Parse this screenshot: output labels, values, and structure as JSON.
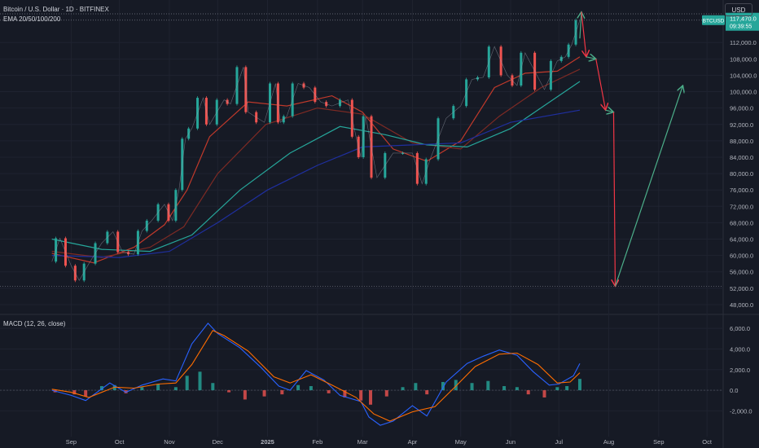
{
  "header": {
    "symbol_title": "Bitcoin / U.S. Dollar · 1D · BITFINEX",
    "ema_label": "EMA 20/50/100/200",
    "currency_button": "USD"
  },
  "price_tag": {
    "symbol": "BTCUSD",
    "price": "117,470.0",
    "countdown": "09:39:55"
  },
  "macd_label": "MACD (12, 26, close)",
  "colors": {
    "background": "#161a25",
    "up": "#26a69a",
    "down": "#ef5350",
    "ema20": "#c0392b",
    "ema50": "#7d2a24",
    "ema100": "#26a69a",
    "ema200": "#1f2f9e",
    "macd": "#2962ff",
    "signal": "#ff6d00",
    "arrow_down": "#f23645",
    "arrow_up": "#4caf8a",
    "grid": "#1f2330",
    "axis_text": "#b2b5be"
  },
  "chart_data": [
    {
      "type": "candlestick",
      "title": "Bitcoin / U.S. Dollar · 1D · BITFINEX",
      "y_axis_ticks": [
        "112,000.0",
        "108,000.0",
        "104,000.0",
        "100,000.0",
        "96,000.0",
        "92,000.0",
        "88,000.0",
        "84,000.0",
        "80,000.0",
        "76,000.0",
        "72,000.0",
        "68,000.0",
        "64,000.0",
        "60,000.0",
        "56,000.0",
        "52,000.0",
        "48,000.0"
      ],
      "ylim": [
        46000,
        120000
      ],
      "x_axis_ticks": [
        "Sep",
        "Oct",
        "Nov",
        "Dec",
        "2025",
        "Feb",
        "Mar",
        "Apr",
        "May",
        "Jun",
        "Jul",
        "Aug",
        "Sep",
        "Oct"
      ],
      "grid": true,
      "close_series": {
        "name": "BTCUSD",
        "points": [
          [
            "2024-08-20",
            58500
          ],
          [
            "2024-08-25",
            64200
          ],
          [
            "2024-09-01",
            57500
          ],
          [
            "2024-09-06",
            53900
          ],
          [
            "2024-09-12",
            58000
          ],
          [
            "2024-09-20",
            63000
          ],
          [
            "2024-09-27",
            65800
          ],
          [
            "2024-10-03",
            60800
          ],
          [
            "2024-10-10",
            60300
          ],
          [
            "2024-10-15",
            66000
          ],
          [
            "2024-10-21",
            68500
          ],
          [
            "2024-10-29",
            72500
          ],
          [
            "2024-11-03",
            68500
          ],
          [
            "2024-11-07",
            76000
          ],
          [
            "2024-11-11",
            88500
          ],
          [
            "2024-11-15",
            91000
          ],
          [
            "2024-11-22",
            98500
          ],
          [
            "2024-11-26",
            92000
          ],
          [
            "2024-12-05",
            98000
          ],
          [
            "2024-12-09",
            97000
          ],
          [
            "2024-12-17",
            106000
          ],
          [
            "2024-12-20",
            95000
          ],
          [
            "2024-12-30",
            92500
          ],
          [
            "2025-01-06",
            102000
          ],
          [
            "2025-01-09",
            92500
          ],
          [
            "2025-01-13",
            94000
          ],
          [
            "2025-01-20",
            102000
          ],
          [
            "2025-01-27",
            101000
          ],
          [
            "2025-02-03",
            97500
          ],
          [
            "2025-02-10",
            96500
          ],
          [
            "2025-02-20",
            98000
          ],
          [
            "2025-02-25",
            89000
          ],
          [
            "2025-02-28",
            84000
          ],
          [
            "2025-03-03",
            94000
          ],
          [
            "2025-03-10",
            79000
          ],
          [
            "2025-03-20",
            85000
          ],
          [
            "2025-04-01",
            85000
          ],
          [
            "2025-04-07",
            77500
          ],
          [
            "2025-04-12",
            83500
          ],
          [
            "2025-04-22",
            93500
          ],
          [
            "2025-05-01",
            96500
          ],
          [
            "2025-05-08",
            103000
          ],
          [
            "2025-05-15",
            103500
          ],
          [
            "2025-05-22",
            111000
          ],
          [
            "2025-05-30",
            104000
          ],
          [
            "2025-06-05",
            101500
          ],
          [
            "2025-06-10",
            109500
          ],
          [
            "2025-06-22",
            100500
          ],
          [
            "2025-06-30",
            107500
          ],
          [
            "2025-07-05",
            108500
          ],
          [
            "2025-07-09",
            111500
          ],
          [
            "2025-07-14",
            117470
          ]
        ]
      },
      "ema_series": [
        {
          "name": "EMA 20",
          "points": [
            [
              "2024-08-20",
              60500
            ],
            [
              "2024-09-15",
              58200
            ],
            [
              "2024-10-10",
              62000
            ],
            [
              "2024-10-29",
              67500
            ],
            [
              "2024-11-12",
              76000
            ],
            [
              "2024-11-26",
              89000
            ],
            [
              "2024-12-20",
              97500
            ],
            [
              "2025-01-13",
              96500
            ],
            [
              "2025-02-10",
              99000
            ],
            [
              "2025-03-01",
              95000
            ],
            [
              "2025-03-20",
              86000
            ],
            [
              "2025-04-10",
              83000
            ],
            [
              "2025-05-01",
              88000
            ],
            [
              "2025-05-22",
              101000
            ],
            [
              "2025-06-10",
              104500
            ],
            [
              "2025-06-30",
              105000
            ],
            [
              "2025-07-14",
              108500
            ]
          ]
        },
        {
          "name": "EMA 50",
          "points": [
            [
              "2024-08-20",
              61000
            ],
            [
              "2024-09-20",
              59500
            ],
            [
              "2024-10-20",
              62000
            ],
            [
              "2024-11-10",
              67000
            ],
            [
              "2024-12-01",
              80000
            ],
            [
              "2024-12-31",
              92000
            ],
            [
              "2025-02-01",
              96000
            ],
            [
              "2025-03-01",
              94500
            ],
            [
              "2025-04-01",
              87500
            ],
            [
              "2025-05-01",
              86000
            ],
            [
              "2025-05-25",
              94000
            ],
            [
              "2025-06-20",
              101000
            ],
            [
              "2025-07-14",
              105500
            ]
          ]
        },
        {
          "name": "EMA 100",
          "points": [
            [
              "2024-08-20",
              64000
            ],
            [
              "2024-09-20",
              61500
            ],
            [
              "2024-10-20",
              61000
            ],
            [
              "2024-11-15",
              65000
            ],
            [
              "2024-12-15",
              76000
            ],
            [
              "2025-01-15",
              85000
            ],
            [
              "2025-02-15",
              91500
            ],
            [
              "2025-03-15",
              89500
            ],
            [
              "2025-04-10",
              87000
            ],
            [
              "2025-05-05",
              86500
            ],
            [
              "2025-06-01",
              91000
            ],
            [
              "2025-07-14",
              102500
            ]
          ]
        },
        {
          "name": "EMA 200",
          "points": [
            [
              "2024-08-20",
              60000
            ],
            [
              "2024-10-01",
              59500
            ],
            [
              "2024-11-01",
              61000
            ],
            [
              "2024-12-01",
              68000
            ],
            [
              "2025-01-01",
              76000
            ],
            [
              "2025-02-01",
              82000
            ],
            [
              "2025-03-01",
              86500
            ],
            [
              "2025-04-01",
              87000
            ],
            [
              "2025-05-01",
              87500
            ],
            [
              "2025-06-01",
              92500
            ],
            [
              "2025-07-14",
              95500
            ]
          ]
        }
      ],
      "projection_arrows": [
        {
          "from": [
            "2025-07-14",
            113000
          ],
          "to": [
            "2025-07-15",
            119500
          ],
          "color": "#4caf8a"
        },
        {
          "from": [
            "2025-07-15",
            119500
          ],
          "to": [
            "2025-07-18",
            108500
          ],
          "color": "#f23645"
        },
        {
          "from": [
            "2025-07-18",
            108500
          ],
          "to": [
            "2025-07-24",
            108000
          ],
          "color": "#4caf8a"
        },
        {
          "from": [
            "2025-07-24",
            108000
          ],
          "to": [
            "2025-07-30",
            95500
          ],
          "color": "#f23645"
        },
        {
          "from": [
            "2025-07-30",
            95500
          ],
          "to": [
            "2025-08-04",
            95000
          ],
          "color": "#4caf8a"
        },
        {
          "from": [
            "2025-08-04",
            95000
          ],
          "to": [
            "2025-08-05",
            52500
          ],
          "color": "#f23645"
        },
        {
          "from": [
            "2025-08-05",
            52500
          ],
          "to": [
            "2025-09-16",
            101500
          ],
          "color": "#4caf8a"
        }
      ],
      "horizontal_levels": [
        119000,
        117470,
        52500
      ]
    },
    {
      "type": "line",
      "title": "MACD (12, 26, close)",
      "y_axis_ticks": [
        "6,000.0",
        "4,000.0",
        "2,000.0",
        "0.0",
        "-2,000.0"
      ],
      "ylim": [
        -4500,
        7200
      ],
      "series": [
        {
          "name": "MACD",
          "points": [
            [
              "2024-08-20",
              0
            ],
            [
              "2024-09-01",
              -500
            ],
            [
              "2024-09-10",
              -1000
            ],
            [
              "2024-09-25",
              700
            ],
            [
              "2024-10-05",
              -200
            ],
            [
              "2024-10-15",
              500
            ],
            [
              "2024-10-28",
              1100
            ],
            [
              "2024-11-05",
              900
            ],
            [
              "2024-11-15",
              4500
            ],
            [
              "2024-11-25",
              6500
            ],
            [
              "2024-12-01",
              5500
            ],
            [
              "2024-12-15",
              4100
            ],
            [
              "2024-12-28",
              2200
            ],
            [
              "2025-01-08",
              400
            ],
            [
              "2025-01-15",
              0
            ],
            [
              "2025-01-25",
              1900
            ],
            [
              "2025-02-05",
              1000
            ],
            [
              "2025-02-15",
              -500
            ],
            [
              "2025-02-28",
              -1100
            ],
            [
              "2025-03-05",
              -2600
            ],
            [
              "2025-03-12",
              -3400
            ],
            [
              "2025-03-20",
              -3000
            ],
            [
              "2025-04-01",
              -1500
            ],
            [
              "2025-04-10",
              -2500
            ],
            [
              "2025-04-22",
              800
            ],
            [
              "2025-05-05",
              2600
            ],
            [
              "2025-05-15",
              3300
            ],
            [
              "2025-05-25",
              3900
            ],
            [
              "2025-06-05",
              3400
            ],
            [
              "2025-06-15",
              1800
            ],
            [
              "2025-06-25",
              500
            ],
            [
              "2025-07-01",
              600
            ],
            [
              "2025-07-10",
              1400
            ],
            [
              "2025-07-14",
              2600
            ]
          ]
        },
        {
          "name": "Signal",
          "points": [
            [
              "2024-08-20",
              100
            ],
            [
              "2024-09-01",
              -200
            ],
            [
              "2024-09-12",
              -700
            ],
            [
              "2024-09-28",
              300
            ],
            [
              "2024-10-10",
              200
            ],
            [
              "2024-10-25",
              600
            ],
            [
              "2024-11-05",
              700
            ],
            [
              "2024-11-15",
              2500
            ],
            [
              "2024-11-28",
              5800
            ],
            [
              "2024-12-05",
              5300
            ],
            [
              "2024-12-20",
              3800
            ],
            [
              "2025-01-05",
              1300
            ],
            [
              "2025-01-15",
              700
            ],
            [
              "2025-01-28",
              1500
            ],
            [
              "2025-02-10",
              500
            ],
            [
              "2025-02-25",
              -700
            ],
            [
              "2025-03-08",
              -2300
            ],
            [
              "2025-03-18",
              -3000
            ],
            [
              "2025-04-01",
              -2100
            ],
            [
              "2025-04-15",
              -1600
            ],
            [
              "2025-04-28",
              400
            ],
            [
              "2025-05-10",
              2300
            ],
            [
              "2025-05-25",
              3500
            ],
            [
              "2025-06-05",
              3600
            ],
            [
              "2025-06-18",
              2500
            ],
            [
              "2025-06-30",
              700
            ],
            [
              "2025-07-08",
              800
            ],
            [
              "2025-07-14",
              1700
            ]
          ]
        }
      ],
      "histogram": {
        "name": "Histogram",
        "points": [
          [
            "2024-08-22",
            -200
          ],
          [
            "2024-09-03",
            -400
          ],
          [
            "2024-09-10",
            -600
          ],
          [
            "2024-09-20",
            400
          ],
          [
            "2024-09-28",
            500
          ],
          [
            "2024-10-05",
            -300
          ],
          [
            "2024-10-15",
            300
          ],
          [
            "2024-10-25",
            600
          ],
          [
            "2024-11-05",
            300
          ],
          [
            "2024-11-12",
            1400
          ],
          [
            "2024-11-20",
            1800
          ],
          [
            "2024-11-28",
            700
          ],
          [
            "2024-12-08",
            -200
          ],
          [
            "2024-12-18",
            -900
          ],
          [
            "2024-12-30",
            -600
          ],
          [
            "2025-01-10",
            -400
          ],
          [
            "2025-01-20",
            500
          ],
          [
            "2025-01-28",
            400
          ],
          [
            "2025-02-08",
            -300
          ],
          [
            "2025-02-18",
            -700
          ],
          [
            "2025-02-28",
            -1000
          ],
          [
            "2025-03-06",
            -1400
          ],
          [
            "2025-03-16",
            -600
          ],
          [
            "2025-03-26",
            300
          ],
          [
            "2025-04-03",
            700
          ],
          [
            "2025-04-10",
            -400
          ],
          [
            "2025-04-20",
            800
          ],
          [
            "2025-04-28",
            1000
          ],
          [
            "2025-05-08",
            700
          ],
          [
            "2025-05-18",
            900
          ],
          [
            "2025-05-28",
            400
          ],
          [
            "2025-06-05",
            300
          ],
          [
            "2025-06-12",
            -400
          ],
          [
            "2025-06-22",
            -700
          ],
          [
            "2025-06-30",
            300
          ],
          [
            "2025-07-06",
            400
          ],
          [
            "2025-07-14",
            1100
          ]
        ]
      }
    }
  ]
}
